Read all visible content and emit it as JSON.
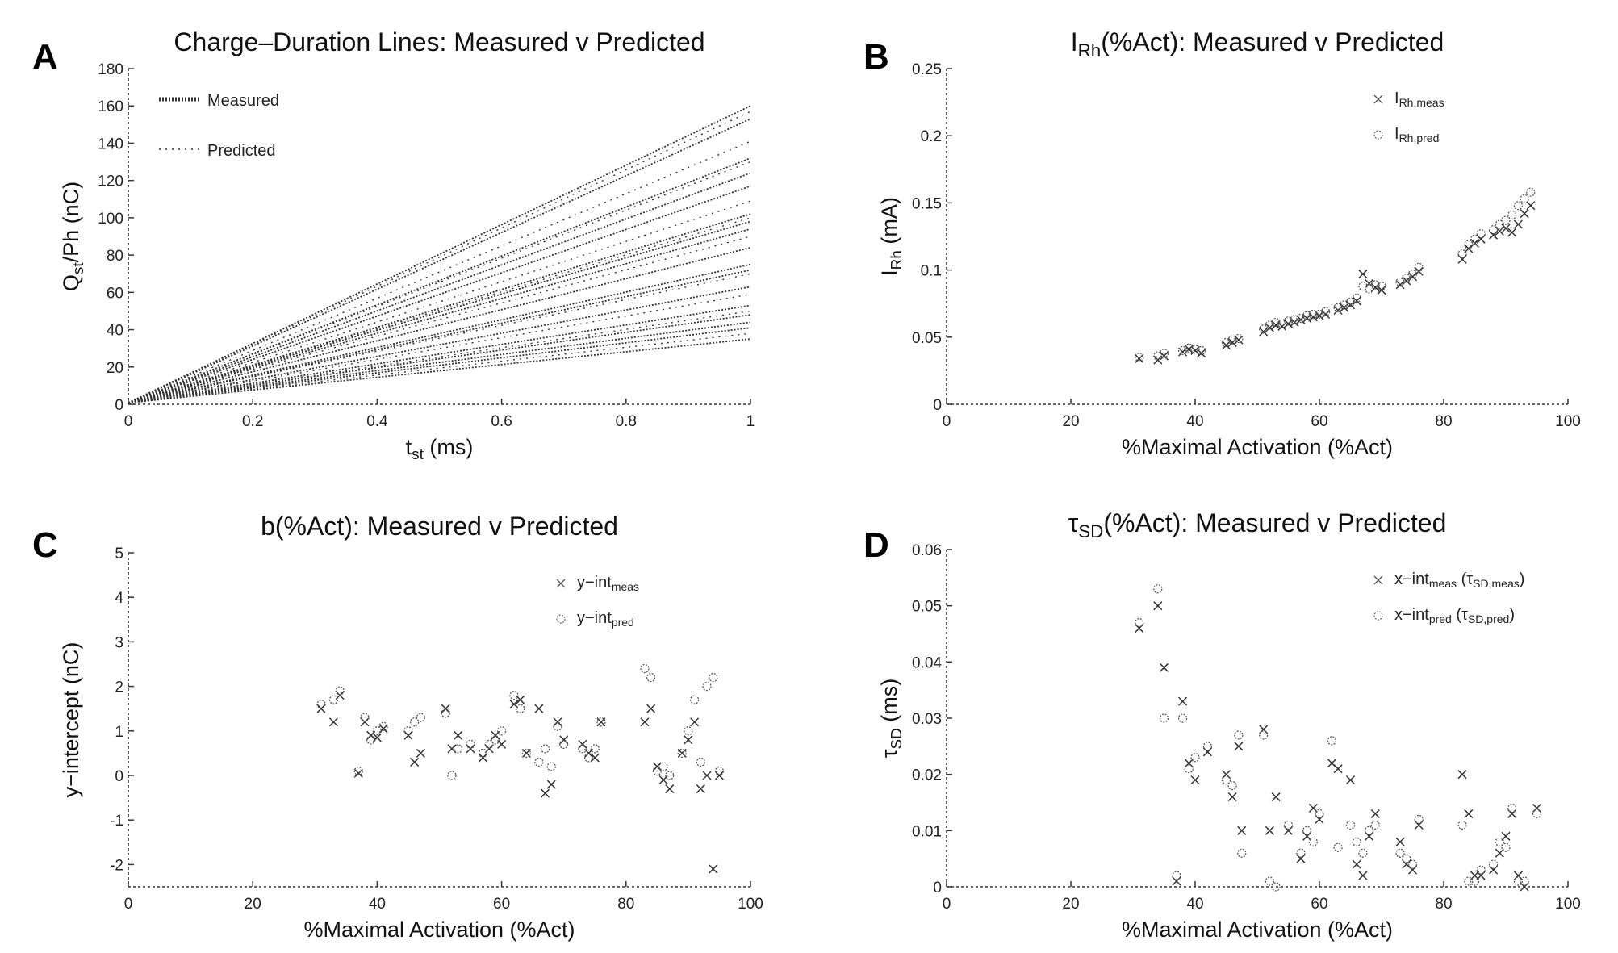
{
  "chart_data": [
    {
      "id": "A",
      "type": "line",
      "panel_letter": "A",
      "title": [
        {
          "t": "Charge–Duration Lines: Measured v Predicted"
        }
      ],
      "xlabel": [
        {
          "t": "t"
        },
        {
          "t": "st",
          "sub": true
        },
        {
          "t": " (ms)"
        }
      ],
      "ylabel": [
        {
          "t": "Q"
        },
        {
          "t": "st",
          "sub": true
        },
        {
          "t": "/Ph (nC)"
        }
      ],
      "xlim": [
        0,
        1
      ],
      "ylim": [
        0,
        180
      ],
      "xticks": [
        0,
        0.2,
        0.4,
        0.6,
        0.8,
        1
      ],
      "yticks": [
        0,
        20,
        40,
        60,
        80,
        100,
        120,
        140,
        160,
        180
      ],
      "legend_placement": "top-left",
      "series": [
        {
          "name": [
            {
              "t": "Measured"
            }
          ],
          "marker": "dense-dotted",
          "x": [
            0,
            1
          ],
          "end_values": [
            160,
            153,
            132,
            124,
            117,
            102,
            98,
            94,
            84,
            75,
            72,
            63,
            53,
            48,
            44,
            41,
            35
          ]
        },
        {
          "name": [
            {
              "t": "Predicted"
            }
          ],
          "marker": "dotted",
          "x": [
            0,
            1
          ],
          "end_values": [
            157,
            141,
            130,
            109,
            100,
            90,
            70,
            59,
            50,
            38
          ]
        }
      ]
    },
    {
      "id": "B",
      "type": "scatter",
      "panel_letter": "B",
      "title": [
        {
          "t": "I"
        },
        {
          "t": "Rh",
          "sub": true
        },
        {
          "t": "(%Act): Measured v Predicted"
        }
      ],
      "xlabel": [
        {
          "t": "%Maximal Activation (%Act)"
        }
      ],
      "ylabel": [
        {
          "t": "I"
        },
        {
          "t": "Rh",
          "sub": true
        },
        {
          "t": " (mA)"
        }
      ],
      "xlim": [
        0,
        100
      ],
      "ylim": [
        0,
        0.25
      ],
      "xticks": [
        0,
        20,
        40,
        60,
        80,
        100
      ],
      "yticks": [
        0,
        0.05,
        0.1,
        0.15,
        0.2,
        0.25
      ],
      "legend_placement": "top-right",
      "x": [
        31,
        34,
        35,
        38,
        39,
        40,
        41,
        45,
        46,
        47,
        51,
        52,
        53,
        54,
        55,
        56,
        57,
        58,
        59,
        60,
        61,
        63,
        64,
        65,
        66,
        67,
        68,
        69,
        70,
        73,
        74,
        75,
        76,
        83,
        84,
        85,
        86,
        88,
        89,
        90,
        91,
        92,
        93,
        94
      ],
      "series": [
        {
          "name": [
            {
              "t": "I"
            },
            {
              "t": "Rh,meas",
              "sub": true
            }
          ],
          "marker": "x",
          "values": [
            0.034,
            0.033,
            0.036,
            0.039,
            0.041,
            0.04,
            0.038,
            0.044,
            0.046,
            0.048,
            0.054,
            0.057,
            0.059,
            0.058,
            0.06,
            0.061,
            0.063,
            0.064,
            0.065,
            0.066,
            0.067,
            0.07,
            0.072,
            0.074,
            0.077,
            0.097,
            0.09,
            0.087,
            0.085,
            0.089,
            0.092,
            0.095,
            0.099,
            0.108,
            0.116,
            0.12,
            0.123,
            0.126,
            0.129,
            0.131,
            0.128,
            0.134,
            0.142,
            0.148
          ]
        },
        {
          "name": [
            {
              "t": "I"
            },
            {
              "t": "Rh,pred",
              "sub": true
            }
          ],
          "marker": "o",
          "values": [
            0.035,
            0.036,
            0.038,
            0.04,
            0.042,
            0.041,
            0.04,
            0.046,
            0.048,
            0.049,
            0.056,
            0.059,
            0.061,
            0.06,
            0.062,
            0.063,
            0.064,
            0.066,
            0.067,
            0.067,
            0.069,
            0.072,
            0.074,
            0.076,
            0.079,
            0.088,
            0.086,
            0.089,
            0.088,
            0.091,
            0.094,
            0.097,
            0.102,
            0.112,
            0.119,
            0.123,
            0.127,
            0.13,
            0.134,
            0.137,
            0.141,
            0.148,
            0.153,
            0.158
          ]
        }
      ]
    },
    {
      "id": "C",
      "type": "scatter",
      "panel_letter": "C",
      "title": [
        {
          "t": "b(%Act): Measured v Predicted"
        }
      ],
      "xlabel": [
        {
          "t": "%Maximal Activation (%Act)"
        }
      ],
      "ylabel": [
        {
          "t": "y−intercept (nC)"
        }
      ],
      "xlim": [
        0,
        100
      ],
      "ylim": [
        -2.5,
        5
      ],
      "xticks": [
        0,
        20,
        40,
        60,
        80,
        100
      ],
      "yticks": [
        -2,
        -1,
        0,
        1,
        2,
        3,
        4,
        5
      ],
      "legend_placement": "top-right",
      "x": [
        31,
        33,
        34,
        37,
        38,
        39,
        40,
        41,
        45,
        46,
        47,
        51,
        52,
        53,
        55,
        57,
        58,
        59,
        60,
        62,
        63,
        64,
        66,
        67,
        68,
        69,
        70,
        73,
        74,
        75,
        76,
        83,
        84,
        85,
        86,
        87,
        89,
        90,
        91,
        92,
        93,
        94,
        95
      ],
      "series": [
        {
          "name": [
            {
              "t": "y−int"
            },
            {
              "t": "meas",
              "sub": true
            }
          ],
          "marker": "x",
          "values": [
            1.5,
            1.2,
            1.8,
            0.05,
            1.2,
            0.9,
            0.85,
            1.05,
            0.9,
            0.3,
            0.5,
            1.5,
            0.6,
            0.9,
            0.6,
            0.4,
            0.6,
            0.9,
            0.7,
            1.6,
            1.7,
            0.5,
            1.5,
            -0.4,
            -0.2,
            1.2,
            0.8,
            0.7,
            0.5,
            0.4,
            1.2,
            1.2,
            1.5,
            0.2,
            -0.1,
            -0.3,
            0.5,
            0.8,
            1.2,
            -0.3,
            0.0,
            -2.1,
            0.0
          ]
        },
        {
          "name": [
            {
              "t": "y−int"
            },
            {
              "t": "pred",
              "sub": true
            }
          ],
          "marker": "o",
          "values": [
            1.6,
            1.7,
            1.9,
            0.1,
            1.3,
            0.8,
            1.0,
            1.1,
            1.0,
            1.2,
            1.3,
            1.4,
            0.0,
            0.6,
            0.7,
            0.5,
            0.7,
            0.8,
            1.0,
            1.8,
            1.5,
            0.5,
            0.3,
            0.6,
            0.2,
            1.1,
            0.7,
            0.6,
            0.4,
            0.6,
            1.2,
            2.4,
            2.2,
            0.1,
            0.2,
            0.0,
            0.5,
            1.0,
            1.7,
            0.3,
            2.0,
            2.2,
            0.1
          ]
        }
      ]
    },
    {
      "id": "D",
      "type": "scatter",
      "panel_letter": "D",
      "title": [
        {
          "t": "τ"
        },
        {
          "t": "SD",
          "sub": true
        },
        {
          "t": "(%Act): Measured v Predicted"
        }
      ],
      "xlabel": [
        {
          "t": "%Maximal Activation (%Act)"
        }
      ],
      "ylabel": [
        {
          "t": "τ"
        },
        {
          "t": "SD",
          "sub": true
        },
        {
          "t": " (ms)"
        }
      ],
      "xlim": [
        0,
        100
      ],
      "ylim": [
        0,
        0.06
      ],
      "xticks": [
        0,
        20,
        40,
        60,
        80,
        100
      ],
      "yticks": [
        0,
        0.01,
        0.02,
        0.03,
        0.04,
        0.05,
        0.06
      ],
      "legend_placement": "top-right",
      "x": [
        31,
        34,
        35,
        37,
        38,
        39,
        40,
        42,
        45,
        46,
        47,
        47.5,
        51,
        52,
        53,
        55,
        57,
        58,
        59,
        60,
        62,
        63,
        65,
        66,
        67,
        68,
        69,
        73,
        74,
        75,
        76,
        83,
        84,
        85,
        86,
        88,
        89,
        90,
        91,
        92,
        93,
        95
      ],
      "series": [
        {
          "name": [
            {
              "t": "x−int"
            },
            {
              "t": "meas",
              "sub": true
            },
            {
              "t": " (τ"
            },
            {
              "t": "SD,meas",
              "sub": true
            },
            {
              "t": ")"
            }
          ],
          "marker": "x",
          "values": [
            0.046,
            0.05,
            0.039,
            0.001,
            0.033,
            0.022,
            0.019,
            0.024,
            0.02,
            0.016,
            0.025,
            0.01,
            0.028,
            0.01,
            0.016,
            0.01,
            0.005,
            0.009,
            0.014,
            0.012,
            0.022,
            0.021,
            0.019,
            0.004,
            0.002,
            0.009,
            0.013,
            0.008,
            0.004,
            0.003,
            0.011,
            0.02,
            0.013,
            0.002,
            0.002,
            0.003,
            0.006,
            0.009,
            0.013,
            0.002,
            0.0,
            0.014
          ]
        },
        {
          "name": [
            {
              "t": "x−int"
            },
            {
              "t": "pred",
              "sub": true
            },
            {
              "t": " (τ"
            },
            {
              "t": "SD,pred",
              "sub": true
            },
            {
              "t": ")"
            }
          ],
          "marker": "o",
          "values": [
            0.047,
            0.053,
            0.03,
            0.002,
            0.03,
            0.021,
            0.023,
            0.025,
            0.019,
            0.018,
            0.027,
            0.006,
            0.027,
            0.001,
            0.0,
            0.011,
            0.006,
            0.01,
            0.008,
            0.013,
            0.026,
            0.007,
            0.011,
            0.008,
            0.006,
            0.01,
            0.011,
            0.006,
            0.005,
            0.004,
            0.012,
            0.011,
            0.001,
            0.001,
            0.003,
            0.004,
            0.008,
            0.007,
            0.014,
            0.001,
            0.001,
            0.013
          ]
        }
      ]
    }
  ]
}
